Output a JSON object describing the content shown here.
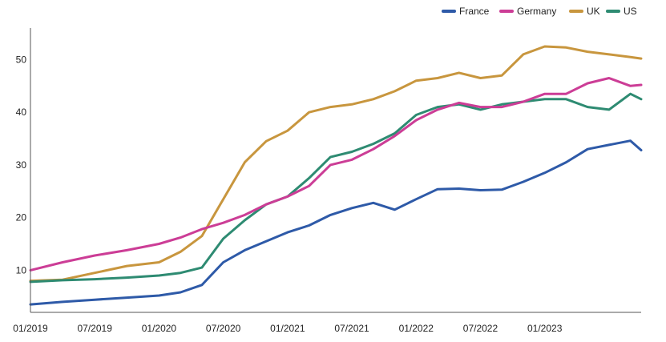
{
  "chart_data": {
    "type": "line",
    "title": "",
    "xlabel": "",
    "ylabel": "",
    "xlim": [
      "2019-01",
      "2023-10"
    ],
    "ylim": [
      2,
      56
    ],
    "yticks": [
      10,
      20,
      30,
      40,
      50
    ],
    "xticks": [
      "01/2019",
      "07/2019",
      "01/2020",
      "07/2020",
      "01/2021",
      "07/2021",
      "01/2022",
      "07/2022",
      "01/2023"
    ],
    "grid": false,
    "legend_position": "top-right",
    "x": [
      "2019-01",
      "2019-04",
      "2019-07",
      "2019-10",
      "2020-01",
      "2020-03",
      "2020-05",
      "2020-07",
      "2020-09",
      "2020-11",
      "2021-01",
      "2021-03",
      "2021-05",
      "2021-07",
      "2021-09",
      "2021-11",
      "2022-01",
      "2022-03",
      "2022-05",
      "2022-07",
      "2022-09",
      "2022-11",
      "2023-01",
      "2023-03",
      "2023-05",
      "2023-07",
      "2023-09",
      "2023-10"
    ],
    "series": [
      {
        "name": "France",
        "color": "#2e5aa8",
        "values": [
          3.5,
          4.0,
          4.4,
          4.8,
          5.2,
          5.8,
          7.2,
          11.5,
          13.8,
          15.5,
          17.2,
          18.5,
          20.5,
          21.8,
          22.8,
          21.5,
          23.5,
          25.4,
          25.5,
          25.2,
          25.3,
          26.8,
          28.5,
          30.5,
          33.0,
          33.8,
          34.6,
          32.8
        ]
      },
      {
        "name": "Germany",
        "color": "#cc3d96",
        "values": [
          10.0,
          11.5,
          12.8,
          13.8,
          15.0,
          16.2,
          17.8,
          19.0,
          20.5,
          22.5,
          24.0,
          26.0,
          30.0,
          31.0,
          33.0,
          35.5,
          38.5,
          40.5,
          41.8,
          41.0,
          41.0,
          42.0,
          43.5,
          43.5,
          45.5,
          46.5,
          45.0,
          45.2
        ]
      },
      {
        "name": "UK",
        "color": "#c8963e",
        "values": [
          8.0,
          8.2,
          9.5,
          10.8,
          11.5,
          13.5,
          16.5,
          23.5,
          30.5,
          34.5,
          36.5,
          40.0,
          41.0,
          41.5,
          42.5,
          44.0,
          46.0,
          46.5,
          47.5,
          46.5,
          47.0,
          51.0,
          52.5,
          52.3,
          51.5,
          51.0,
          50.5,
          50.2
        ]
      },
      {
        "name": "US",
        "color": "#2e8b72",
        "values": [
          7.8,
          8.1,
          8.3,
          8.6,
          9.0,
          9.5,
          10.5,
          16.0,
          19.5,
          22.5,
          24.0,
          27.5,
          31.5,
          32.5,
          34.0,
          36.0,
          39.5,
          41.0,
          41.5,
          40.5,
          41.5,
          42.0,
          42.5,
          42.5,
          41.0,
          40.5,
          43.5,
          42.5
        ]
      }
    ]
  }
}
